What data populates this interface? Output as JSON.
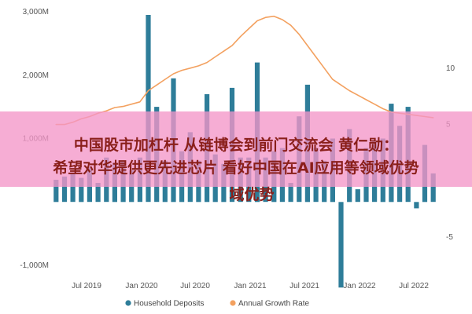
{
  "chart_data": {
    "type": "bar",
    "title": "",
    "xlabel": "",
    "ylabel": "",
    "y_left": {
      "ylim": [
        -1000,
        3000
      ],
      "ticks": [
        "3,000M",
        "2,000M",
        "1,000M",
        "",
        "-1,000M"
      ],
      "tick_values": [
        3000,
        2000,
        1000,
        0,
        -1000
      ]
    },
    "y_right": {
      "ylim": [
        -7.5,
        15
      ],
      "ticks": [
        "10",
        "5",
        "",
        "-5"
      ],
      "tick_values": [
        10,
        5,
        0,
        -5
      ]
    },
    "x_ticks": [
      "Jul 2019",
      "Jan 2020",
      "Jul 2020",
      "Jan 2021",
      "Jul 2021",
      "Jan 2022",
      "Jul 2022"
    ],
    "grid": false,
    "legend_position": "bottom",
    "series": [
      {
        "name": "Household Deposits",
        "kind": "bar",
        "axis": "left",
        "color": "#2e7d99",
        "values": [
          350,
          400,
          450,
          380,
          550,
          300,
          700,
          620,
          650,
          500,
          700,
          2950,
          1500,
          650,
          1950,
          800,
          1100,
          650,
          1700,
          750,
          600,
          1800,
          700,
          700,
          2200,
          700,
          800,
          850,
          300,
          1350,
          1850,
          850,
          650,
          1000,
          -1350,
          1150,
          200,
          850,
          950,
          1000,
          1550,
          1200,
          1500,
          -100,
          900,
          450
        ]
      },
      {
        "name": "Annual Growth Rate",
        "kind": "line",
        "axis": "right",
        "color": "#f3a160",
        "values": [
          5.0,
          5.0,
          5.2,
          5.5,
          5.7,
          6.0,
          6.2,
          6.5,
          6.6,
          6.8,
          7.0,
          8.0,
          8.5,
          9.0,
          9.5,
          9.8,
          10.0,
          10.2,
          10.5,
          11.0,
          11.5,
          12.0,
          12.8,
          13.5,
          14.2,
          14.5,
          14.6,
          14.3,
          13.8,
          13.0,
          12.0,
          11.0,
          10.0,
          9.0,
          8.5,
          8.0,
          7.6,
          7.2,
          6.8,
          6.4,
          6.1,
          6.0,
          5.9,
          5.8,
          5.7,
          5.6
        ]
      }
    ]
  },
  "legend": {
    "items": [
      {
        "label": "Household Deposits",
        "color": "#2e7d99"
      },
      {
        "label": "Annual Growth Rate",
        "color": "#f3a160"
      }
    ]
  },
  "overlay": {
    "line1": "中国股市加杠杆 从链博会到前门交流会 黄仁勋：",
    "line2": "希望对华提供更先进芯片 看好中国在AI应用等领域优势",
    "line3": "域优势"
  }
}
